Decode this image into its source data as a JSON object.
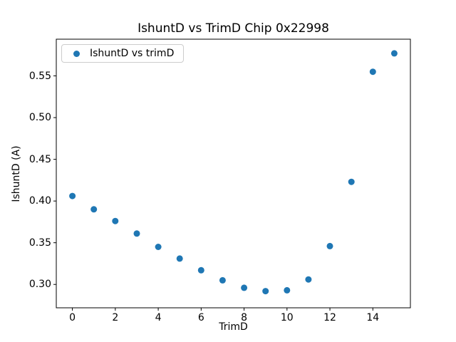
{
  "chart_data": {
    "type": "scatter",
    "title": "IshuntD vs TrimD Chip 0x22998",
    "xlabel": "TrimD",
    "ylabel": "IshuntD (A)",
    "legend_label": "IshuntD vs trimD",
    "legend_position": "upper left",
    "grid": false,
    "marker_color": "#1f77b4",
    "marker_shape": "circle",
    "text_color": "#000000",
    "frame_color": "#000000",
    "legend_border_color": "#cccccc",
    "series": [
      {
        "name": "IshuntD vs trimD",
        "x": [
          0,
          1,
          2,
          3,
          4,
          5,
          6,
          7,
          8,
          9,
          10,
          11,
          12,
          13,
          14,
          15
        ],
        "y": [
          0.406,
          0.39,
          0.376,
          0.361,
          0.345,
          0.331,
          0.317,
          0.305,
          0.296,
          0.292,
          0.293,
          0.306,
          0.346,
          0.423,
          0.555,
          0.577
        ]
      }
    ],
    "xlim": [
      -0.75,
      15.75
    ],
    "ylim": [
      0.272,
      0.594
    ],
    "xticks": [
      0,
      2,
      4,
      6,
      8,
      10,
      12,
      14
    ],
    "yticks": [
      0.3,
      0.35,
      0.4,
      0.45,
      0.5,
      0.55
    ]
  }
}
